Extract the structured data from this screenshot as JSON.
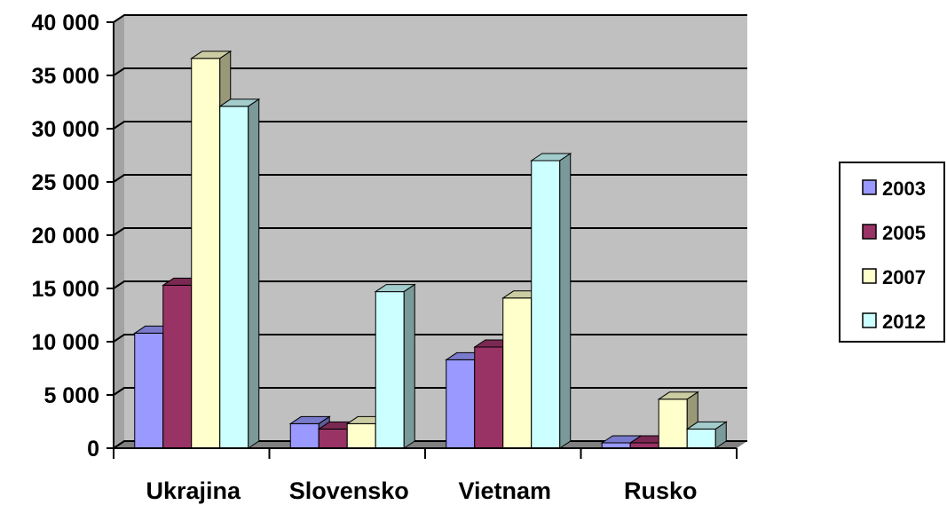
{
  "chart_data": {
    "type": "bar",
    "title": "",
    "xlabel": "",
    "ylabel": "",
    "categories": [
      "Ukrajina",
      "Slovensko",
      "Vietnam",
      "Rusko"
    ],
    "series": [
      {
        "name": "2003",
        "values": [
          10800,
          2300,
          8300,
          500
        ],
        "color": "#9999ff"
      },
      {
        "name": "2005",
        "values": [
          15300,
          1800,
          9500,
          500
        ],
        "color": "#993366"
      },
      {
        "name": "2007",
        "values": [
          36600,
          2300,
          14100,
          4600
        ],
        "color": "#ffffcc"
      },
      {
        "name": "2012",
        "values": [
          32100,
          14700,
          27000,
          1800
        ],
        "color": "#ccffff"
      }
    ],
    "ylim": [
      0,
      40000
    ],
    "yticks": [
      "0",
      "5 000",
      "10 000",
      "15 000",
      "20 000",
      "25 000",
      "30 000",
      "35 000",
      "40 000"
    ],
    "grid": true,
    "legend_position": "right",
    "wall_color": "#c0c0c0",
    "floor_color": "#808080"
  }
}
